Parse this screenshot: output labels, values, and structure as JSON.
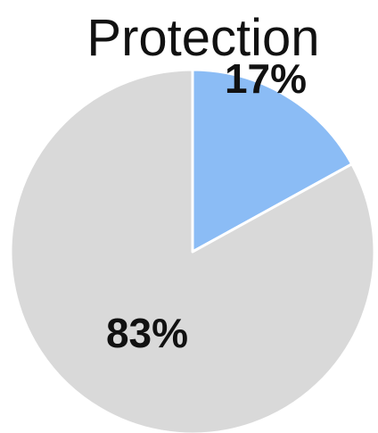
{
  "chart_data": {
    "type": "pie",
    "title": "Protection",
    "slices": [
      {
        "label": "17%",
        "value": 17,
        "color": "#8bbcf5"
      },
      {
        "label": "83%",
        "value": 83,
        "color": "#d9d9d9"
      }
    ],
    "start": "12 o'clock",
    "direction": "clockwise",
    "slice_border_color": "#ffffff"
  }
}
